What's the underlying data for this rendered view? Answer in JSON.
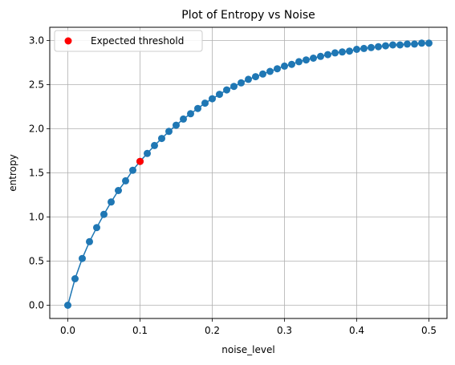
{
  "chart_data": {
    "type": "line",
    "title": "Plot of Entropy vs Noise",
    "xlabel": "noise_level",
    "ylabel": "entropy",
    "xlim": [
      -0.025,
      0.525
    ],
    "ylim": [
      -0.15,
      3.15
    ],
    "x_ticks": [
      0.0,
      0.1,
      0.2,
      0.3,
      0.4,
      0.5
    ],
    "x_tick_labels": [
      "0.0",
      "0.1",
      "0.2",
      "0.3",
      "0.4",
      "0.5"
    ],
    "y_ticks": [
      0.0,
      0.5,
      1.0,
      1.5,
      2.0,
      2.5,
      3.0
    ],
    "y_tick_labels": [
      "0.0",
      "0.5",
      "1.0",
      "1.5",
      "2.0",
      "2.5",
      "3.0"
    ],
    "grid": true,
    "legend_position": "top-left",
    "series": [
      {
        "color": "#1f77b4",
        "marker": "circle",
        "x": [
          0.0,
          0.01,
          0.02,
          0.03,
          0.04,
          0.05,
          0.06,
          0.07,
          0.08,
          0.09,
          0.1,
          0.11,
          0.12,
          0.13,
          0.14,
          0.15,
          0.16,
          0.17,
          0.18,
          0.19,
          0.2,
          0.21,
          0.22,
          0.23,
          0.24,
          0.25,
          0.26,
          0.27,
          0.28,
          0.29,
          0.3,
          0.31,
          0.32,
          0.33,
          0.34,
          0.35,
          0.36,
          0.37,
          0.38,
          0.39,
          0.4,
          0.41,
          0.42,
          0.43,
          0.44,
          0.45,
          0.46,
          0.47,
          0.48,
          0.49,
          0.5
        ],
        "y": [
          0.0,
          0.3,
          0.53,
          0.72,
          0.88,
          1.03,
          1.17,
          1.3,
          1.41,
          1.53,
          1.63,
          1.72,
          1.81,
          1.89,
          1.97,
          2.04,
          2.11,
          2.17,
          2.23,
          2.29,
          2.34,
          2.39,
          2.44,
          2.48,
          2.52,
          2.56,
          2.59,
          2.62,
          2.65,
          2.68,
          2.71,
          2.73,
          2.76,
          2.78,
          2.8,
          2.82,
          2.84,
          2.86,
          2.87,
          2.88,
          2.9,
          2.91,
          2.92,
          2.93,
          2.94,
          2.95,
          2.95,
          2.96,
          2.96,
          2.97,
          2.97
        ]
      },
      {
        "name": "Expected threshold",
        "color": "#ff0000",
        "marker": "circle",
        "x": [
          0.1
        ],
        "y": [
          1.63
        ]
      }
    ]
  }
}
